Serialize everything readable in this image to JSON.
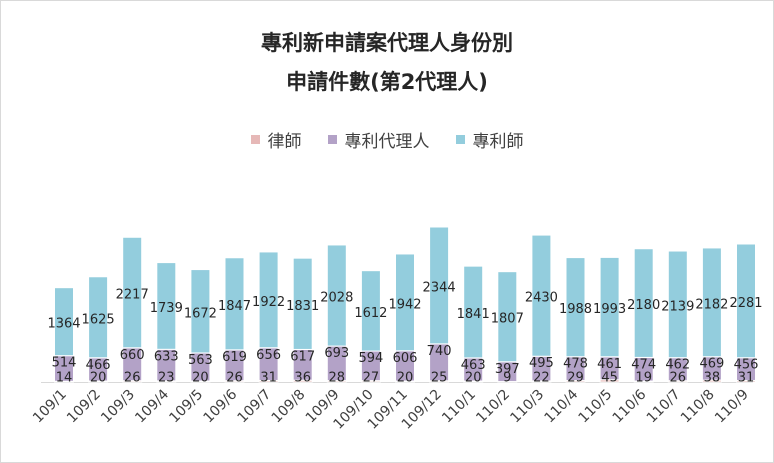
{
  "chart_data": {
    "type": "bar",
    "stacked": true,
    "title": "專利新申請案代理人身份別",
    "subtitle": "申請件數(第2代理人)",
    "xlabel": "",
    "ylabel": "",
    "legend_position": "top",
    "grid": false,
    "categories": [
      "109/1",
      "109/2",
      "109/3",
      "109/4",
      "109/5",
      "109/6",
      "109/7",
      "109/8",
      "109/9",
      "109/10",
      "109/11",
      "109/12",
      "110/1",
      "110/2",
      "110/3",
      "110/4",
      "110/5",
      "110/6",
      "110/7",
      "110/8",
      "110/9"
    ],
    "series": [
      {
        "name": "律師",
        "color": "#e6b8b7",
        "values": [
          14,
          20,
          26,
          23,
          20,
          26,
          31,
          36,
          28,
          27,
          20,
          25,
          20,
          9,
          22,
          29,
          45,
          19,
          26,
          38,
          31
        ]
      },
      {
        "name": "專利代理人",
        "color": "#b3a2c7",
        "values": [
          514,
          466,
          660,
          633,
          563,
          619,
          656,
          617,
          693,
          594,
          606,
          740,
          463,
          397,
          495,
          478,
          461,
          474,
          462,
          469,
          456
        ]
      },
      {
        "name": "專利師",
        "color": "#93cddd",
        "values": [
          1364,
          1625,
          2217,
          1739,
          1672,
          1847,
          1922,
          1831,
          2028,
          1612,
          1942,
          2344,
          1841,
          1807,
          2430,
          1988,
          1993,
          2180,
          2139,
          2182,
          2281
        ]
      }
    ]
  }
}
